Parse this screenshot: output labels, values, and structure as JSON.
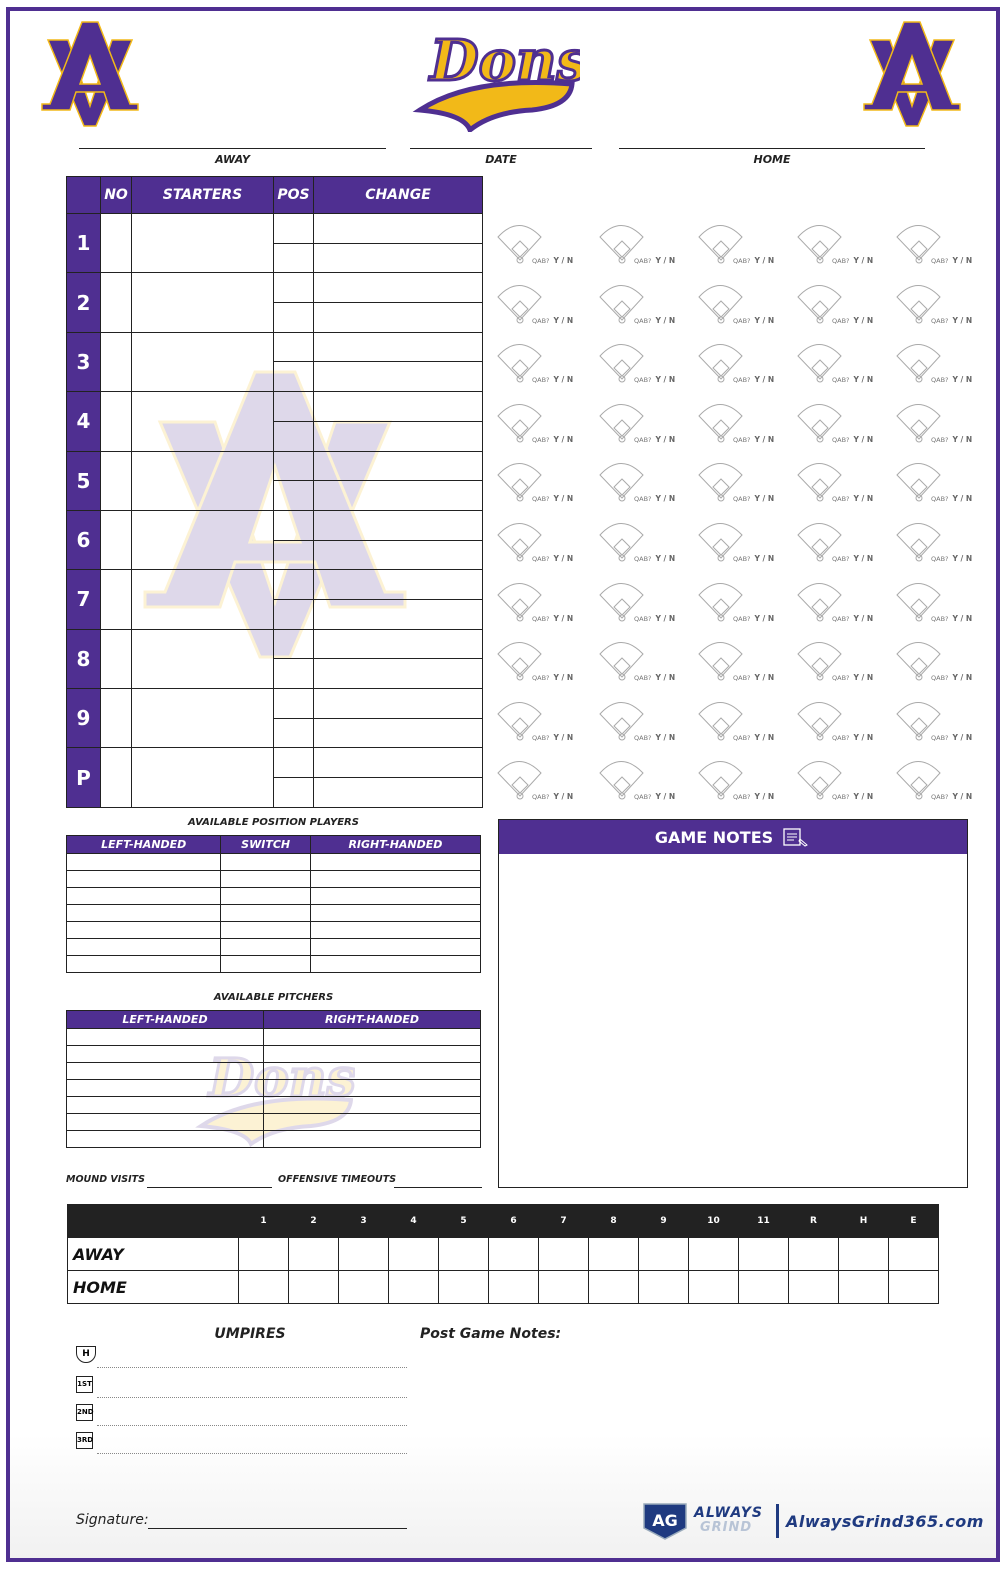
{
  "header": {
    "logo_left": "AV",
    "logo_center": "Dons",
    "logo_right": "AV",
    "away_label": "AWAY",
    "date_label": "DATE",
    "home_label": "HOME"
  },
  "lineup": {
    "columns": [
      "NO",
      "STARTERS",
      "POS",
      "CHANGE"
    ],
    "rows": [
      "1",
      "2",
      "3",
      "4",
      "5",
      "6",
      "7",
      "8",
      "9",
      "P"
    ]
  },
  "at_bat": {
    "prompt": "QAB?",
    "options": "Y / N",
    "columns": 5,
    "rows": 10
  },
  "position_players": {
    "title": "AVAILABLE POSITION PLAYERS",
    "columns": [
      "LEFT-HANDED",
      "SWITCH",
      "RIGHT-HANDED"
    ]
  },
  "pitchers": {
    "title": "AVAILABLE PITCHERS",
    "columns": [
      "LEFT-HANDED",
      "RIGHT-HANDED"
    ]
  },
  "mound_visits_label": "MOUND VISITS",
  "offensive_timeouts_label": "OFFENSIVE TIMEOUTS",
  "game_notes": {
    "title": "GAME NOTES",
    "icon": "notepad-pencil-icon"
  },
  "linescore": {
    "columns": [
      "1",
      "2",
      "3",
      "4",
      "5",
      "6",
      "7",
      "8",
      "9",
      "10",
      "11",
      "R",
      "H",
      "E"
    ],
    "teams": [
      "AWAY",
      "HOME"
    ]
  },
  "umpires": {
    "title": "UMPIRES",
    "positions": [
      "H",
      "1ST",
      "2ND",
      "3RD"
    ]
  },
  "post_game_notes": "Post Game Notes:",
  "signature_label": "Signature:",
  "footer": {
    "brand_top": "ALWAYS",
    "brand_bottom": "GRIND",
    "logo_mark": "AG",
    "url": "AlwaysGrind365.com"
  },
  "colors": {
    "purple": "#4f2f91",
    "gold": "#f2b918",
    "dark": "#222222",
    "footer_blue": "#1f3a80"
  }
}
